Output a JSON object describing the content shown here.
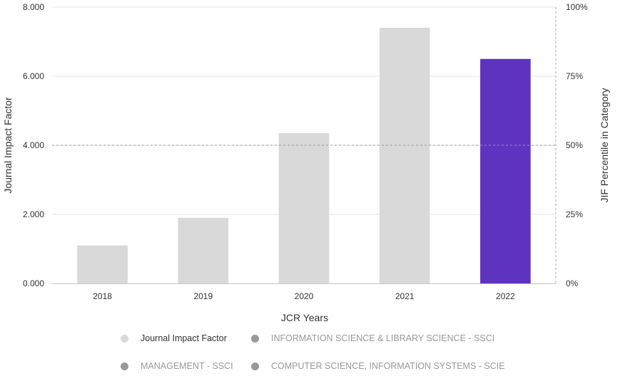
{
  "chart_data": {
    "type": "bar",
    "categories": [
      "2018",
      "2019",
      "2020",
      "2021",
      "2022"
    ],
    "series": [
      {
        "name": "Journal Impact Factor",
        "values": [
          1.1,
          1.9,
          4.35,
          7.4,
          6.5
        ]
      }
    ],
    "bar_colors": [
      "#d9d9d9",
      "#d9d9d9",
      "#d9d9d9",
      "#d9d9d9",
      "#5e33bf"
    ],
    "xlabel": "JCR Years",
    "ylabel": "Journal Impact Factor",
    "y2label": "JIF Percentile in Category",
    "ylim": [
      0,
      8
    ],
    "y_ticks": [
      "0.000",
      "2.000",
      "4.000",
      "6.000",
      "8.000"
    ],
    "y2lim": [
      0,
      100
    ],
    "y2_ticks": [
      "0%",
      "25%",
      "50%",
      "75%",
      "100%"
    ],
    "reference_line_percentile": 50,
    "grid": true,
    "legend_position": "bottom"
  },
  "legend": {
    "items": [
      {
        "label": "Journal Impact Factor",
        "color": "#d9d9d9",
        "active": true
      },
      {
        "label": "INFORMATION SCIENCE & LIBRARY SCIENCE - SSCI",
        "color": "#999999",
        "active": false
      },
      {
        "label": "MANAGEMENT - SSCI",
        "color": "#999999",
        "active": false
      },
      {
        "label": "COMPUTER SCIENCE, INFORMATION SYSTEMS - SCIE",
        "color": "#999999",
        "active": false
      }
    ]
  }
}
